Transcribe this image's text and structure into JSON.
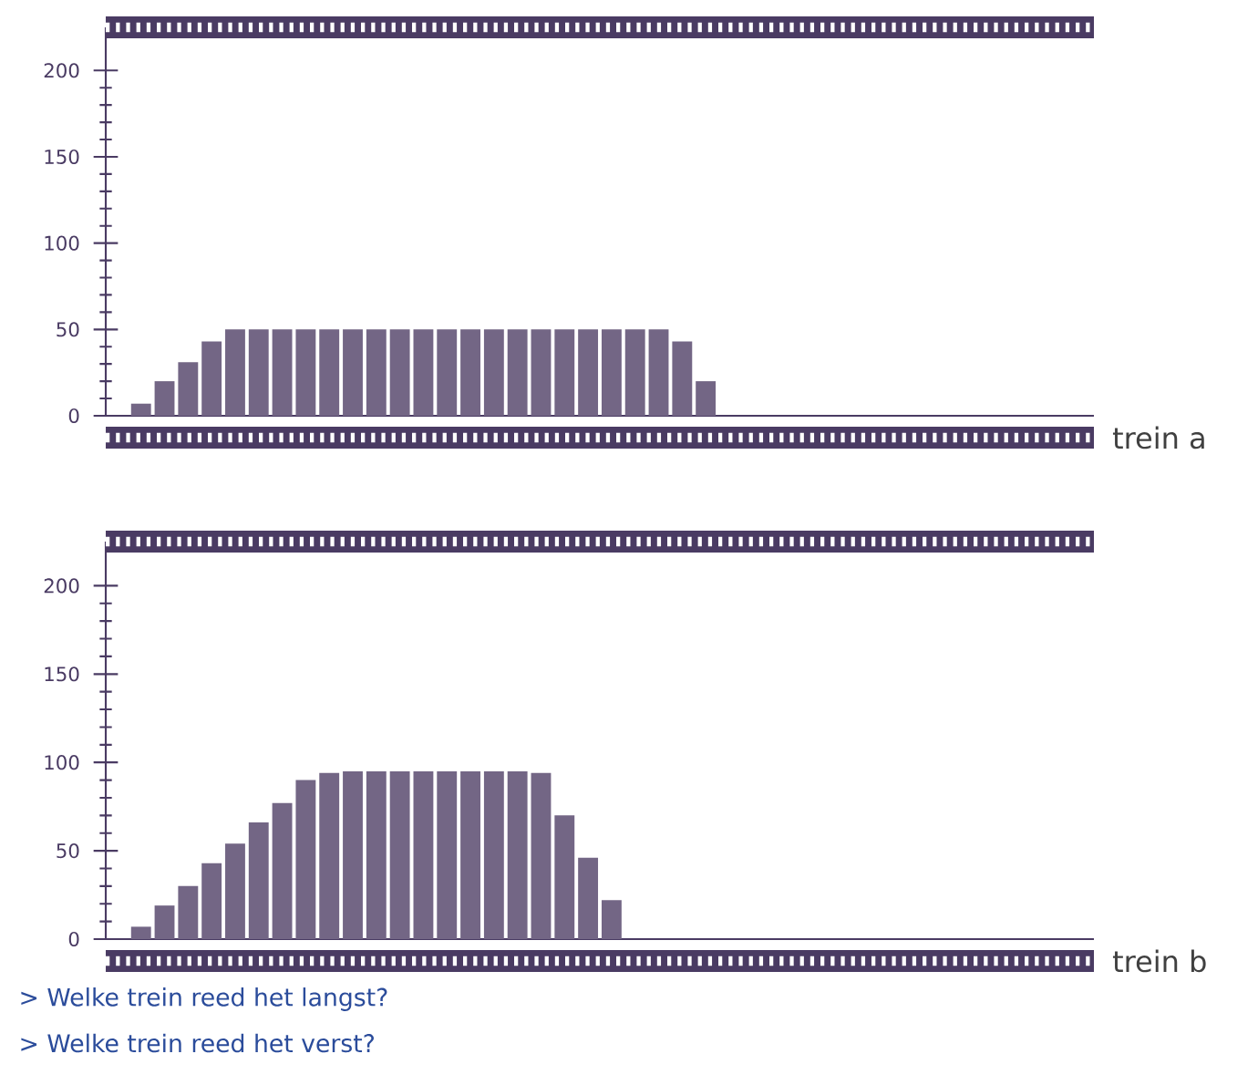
{
  "chart_data": [
    {
      "type": "bar",
      "xlabel": "trein a",
      "color": "#736685",
      "categories": [
        null,
        null,
        null,
        null,
        null,
        null,
        null,
        null,
        null,
        null,
        null,
        null,
        null,
        null,
        null,
        null,
        null,
        null,
        null,
        null,
        null,
        null,
        null,
        null,
        null,
        null,
        null,
        null,
        null,
        null,
        null,
        null,
        null,
        null,
        null,
        null,
        null,
        null,
        null,
        null,
        null,
        null
      ],
      "values": [
        null,
        7,
        20,
        31,
        43,
        50,
        50,
        50,
        50,
        50,
        50,
        50,
        50,
        50,
        50,
        50,
        50,
        50,
        50,
        50,
        50,
        50,
        50,
        50,
        43,
        20,
        null,
        null,
        null,
        null,
        null,
        null,
        null,
        null,
        null,
        null,
        null,
        null,
        null,
        null,
        null,
        null
      ],
      "ylim": [
        0,
        225
      ],
      "yticks": [
        0,
        50,
        100,
        150,
        200
      ]
    },
    {
      "type": "bar",
      "xlabel": "trein b",
      "color": "#736685",
      "categories": [
        null,
        null,
        null,
        null,
        null,
        null,
        null,
        null,
        null,
        null,
        null,
        null,
        null,
        null,
        null,
        null,
        null,
        null,
        null,
        null,
        null,
        null,
        null,
        null,
        null,
        null,
        null,
        null,
        null,
        null,
        null,
        null,
        null,
        null,
        null,
        null,
        null,
        null,
        null,
        null,
        null,
        null
      ],
      "values": [
        null,
        7,
        19,
        30,
        43,
        54,
        66,
        77,
        90,
        94,
        95,
        95,
        95,
        95,
        95,
        95,
        95,
        95,
        94,
        70,
        46,
        22,
        null,
        null,
        null,
        null,
        null,
        null,
        null,
        null,
        null,
        null,
        null,
        null,
        null,
        null,
        null,
        null,
        null,
        null,
        null,
        null
      ],
      "ylim": [
        0,
        225
      ],
      "yticks": [
        0,
        50,
        100,
        150,
        200
      ],
      "annotations": [
        "> Welke trein reed het langst?",
        "> Welke trein reed het verst?"
      ]
    }
  ]
}
